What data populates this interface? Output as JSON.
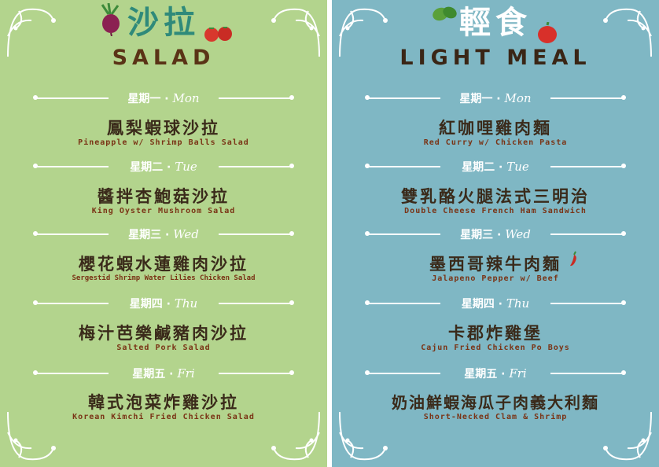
{
  "colors": {
    "salad_bg": "#b3d48d",
    "meal_bg": "#7fb7c4",
    "text_dark": "#3a2a1a",
    "text_accent": "#7a3416",
    "ornament": "#ffffff"
  },
  "salad": {
    "title_zh": "沙拉",
    "title_en": "SALAD",
    "days": [
      {
        "zh": "星期一",
        "en": "Mon",
        "dish_zh": "鳳梨蝦球沙拉",
        "dish_en": "Pineapple w/ Shrimp Balls Salad"
      },
      {
        "zh": "星期二",
        "en": "Tue",
        "dish_zh": "醬拌杏鮑菇沙拉",
        "dish_en": "King Oyster Mushroom Salad"
      },
      {
        "zh": "星期三",
        "en": "Wed",
        "dish_zh": "櫻花蝦水蓮雞肉沙拉",
        "dish_en": "Sergestid Shrimp Water Lilies Chicken Salad"
      },
      {
        "zh": "星期四",
        "en": "Thu",
        "dish_zh": "梅汁芭樂鹹豬肉沙拉",
        "dish_en": "Salted Pork Salad"
      },
      {
        "zh": "星期五",
        "en": "Fri",
        "dish_zh": "韓式泡菜炸雞沙拉",
        "dish_en": "Korean Kimchi Fried Chicken Salad"
      }
    ]
  },
  "light_meal": {
    "title_zh": "輕食",
    "title_en": "LIGHT MEAL",
    "days": [
      {
        "zh": "星期一",
        "en": "Mon",
        "dish_zh": "紅咖哩雞肉麵",
        "dish_en": "Red Curry w/ Chicken Pasta"
      },
      {
        "zh": "星期二",
        "en": "Tue",
        "dish_zh": "雙乳酪火腿法式三明治",
        "dish_en": "Double Cheese French Ham Sandwich"
      },
      {
        "zh": "星期三",
        "en": "Wed",
        "dish_zh": "墨西哥辣牛肉麵",
        "dish_en": "Jalapeno Pepper w/ Beef"
      },
      {
        "zh": "星期四",
        "en": "Thu",
        "dish_zh": "卡郡炸雞堡",
        "dish_en": "Cajun Fried Chicken Po Boys"
      },
      {
        "zh": "星期五",
        "en": "Fri",
        "dish_zh": "奶油鮮蝦海瓜子肉義大利麵",
        "dish_en": "Short-Necked Clam & Shrimp"
      }
    ]
  },
  "icons": [
    "beet-icon",
    "tomato-icon",
    "leaf-icon",
    "bell-pepper-icon",
    "chili-icon",
    "flourish-corner-icon"
  ]
}
